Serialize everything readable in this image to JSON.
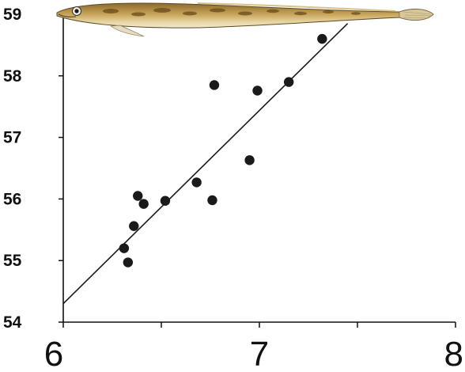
{
  "chart_data": {
    "type": "scatter",
    "title": "",
    "xlabel": "",
    "ylabel": "",
    "xlim": [
      6,
      8
    ],
    "ylim": [
      54,
      59
    ],
    "xticks": [
      6,
      7,
      8
    ],
    "xtick_labels": [
      "6",
      "7",
      "8"
    ],
    "xminor_ticks": [
      6.5,
      7.5
    ],
    "yticks": [
      54,
      55,
      56,
      57,
      58,
      59
    ],
    "ytick_labels": [
      "54",
      "55",
      "56",
      "57",
      "58",
      "59"
    ],
    "grid": false,
    "legend": "none",
    "series": [
      {
        "points": [
          [
            6.31,
            55.2
          ],
          [
            6.33,
            54.97
          ],
          [
            6.36,
            55.56
          ],
          [
            6.38,
            56.05
          ],
          [
            6.41,
            55.92
          ],
          [
            6.52,
            55.97
          ],
          [
            6.68,
            56.27
          ],
          [
            6.76,
            55.98
          ],
          [
            6.77,
            57.85
          ],
          [
            6.95,
            56.63
          ],
          [
            6.99,
            57.76
          ],
          [
            7.15,
            57.9
          ],
          [
            7.32,
            58.6
          ]
        ],
        "color": "#1a1a1a"
      }
    ],
    "trendline": {
      "from": [
        6.0,
        54.3
      ],
      "to": [
        7.45,
        58.85
      ],
      "color": "#1a1a1a"
    },
    "decoration": "fish-illustration"
  }
}
